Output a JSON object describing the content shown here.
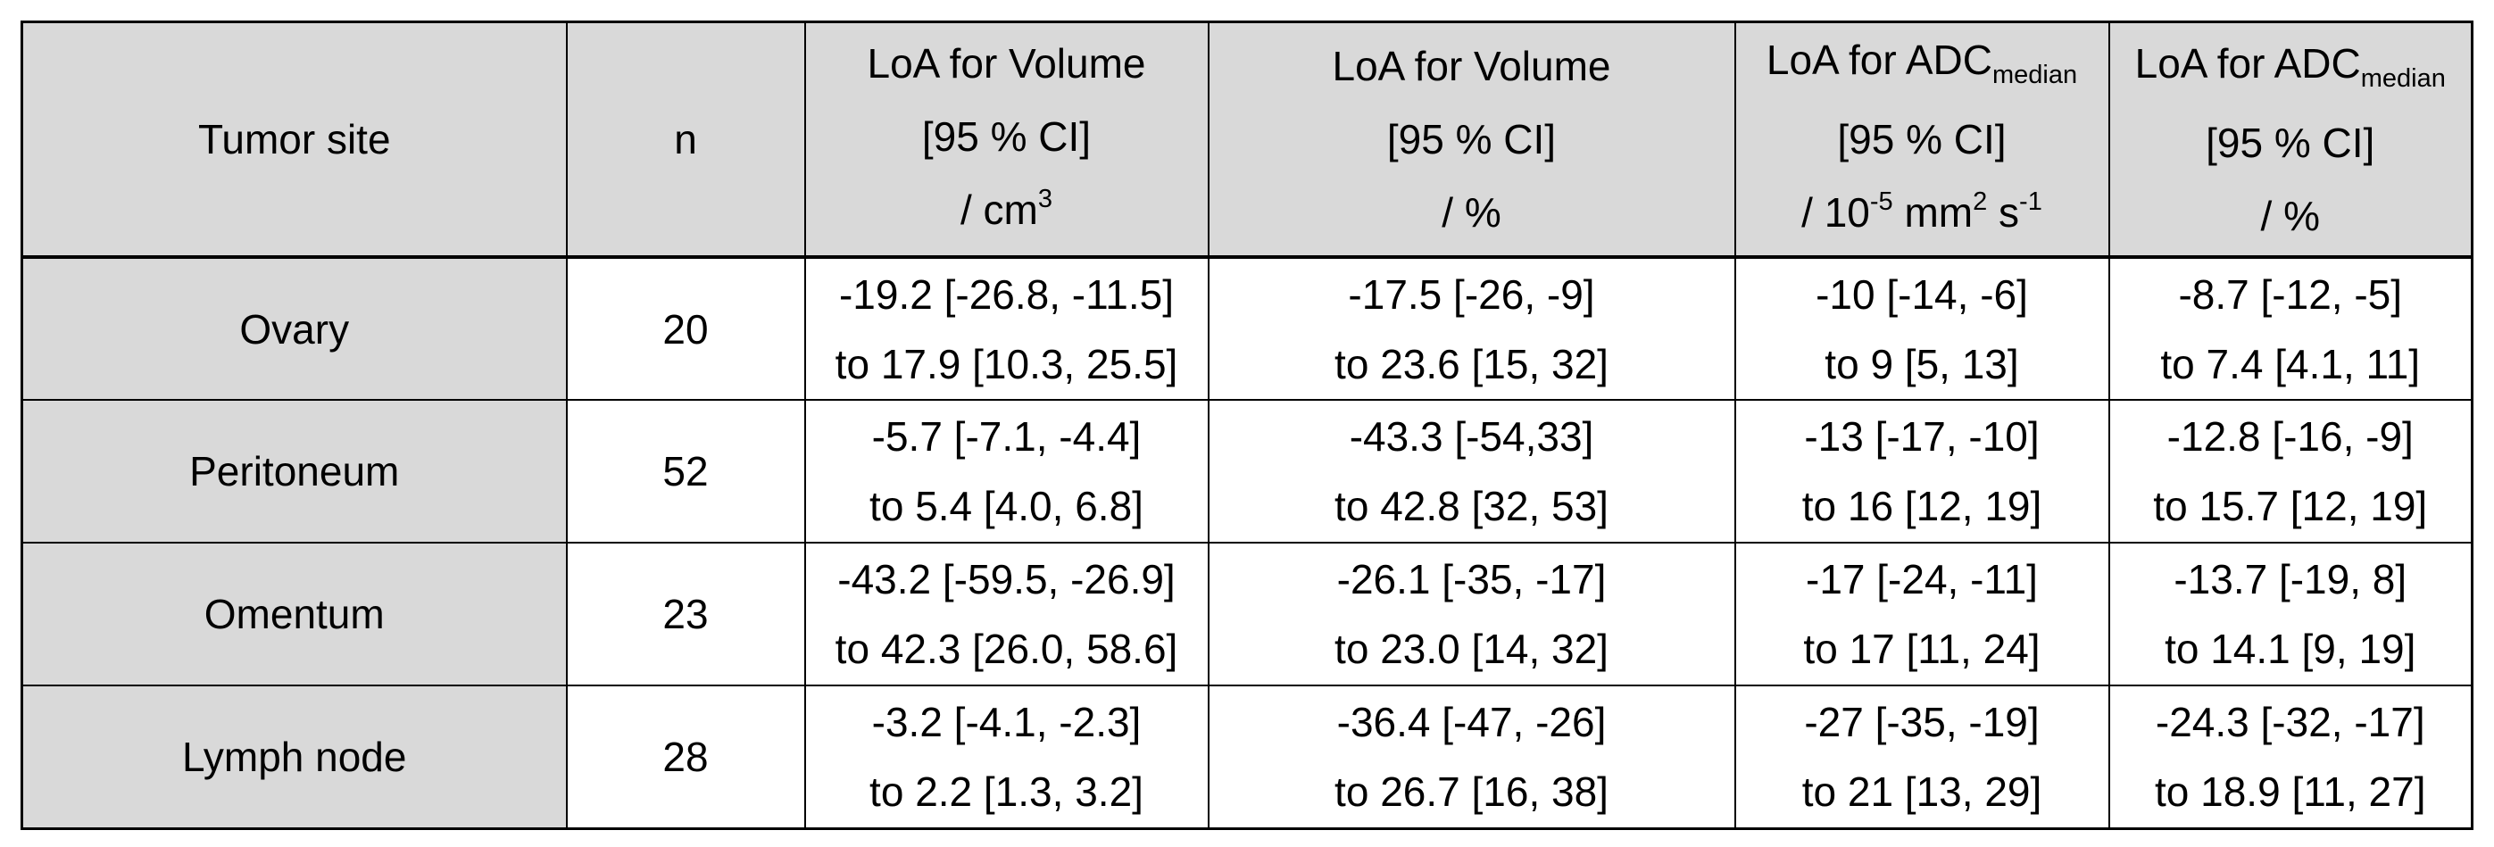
{
  "colors": {
    "header_bg": "#d9d9d9",
    "row_label_bg": "#d9d9d9",
    "border": "#000000",
    "text": "#000000",
    "page_bg": "#ffffff"
  },
  "table": {
    "columns": [
      {
        "id": "site",
        "lines": [
          [
            {
              "t": "Tumor site"
            }
          ]
        ]
      },
      {
        "id": "n",
        "lines": [
          [
            {
              "t": "n"
            }
          ]
        ]
      },
      {
        "id": "vol_cm3",
        "lines": [
          [
            {
              "t": "LoA for Volume"
            }
          ],
          [
            {
              "t": "[95 % CI]"
            }
          ],
          [
            {
              "t": "/ cm"
            },
            {
              "t": "3",
              "s": "sup"
            }
          ]
        ]
      },
      {
        "id": "vol_pct",
        "lines": [
          [
            {
              "t": "LoA for Volume"
            }
          ],
          [
            {
              "t": "[95 % CI]"
            }
          ],
          [
            {
              "t": "/ %"
            }
          ]
        ]
      },
      {
        "id": "adc",
        "lines": [
          [
            {
              "t": "LoA for ADC"
            },
            {
              "t": "median",
              "s": "sub"
            }
          ],
          [
            {
              "t": "[95 % CI]"
            }
          ],
          [
            {
              "t": "/ 10"
            },
            {
              "t": "-5",
              "s": "sup"
            },
            {
              "t": " mm"
            },
            {
              "t": "2",
              "s": "sup"
            },
            {
              "t": " s"
            },
            {
              "t": "-1",
              "s": "sup"
            }
          ]
        ]
      },
      {
        "id": "adc_pct",
        "lines": [
          [
            {
              "t": "LoA for ADC"
            },
            {
              "t": "median",
              "s": "sub"
            }
          ],
          [
            {
              "t": "[95 % CI]"
            }
          ],
          [
            {
              "t": "/ %"
            }
          ]
        ]
      }
    ],
    "rows": [
      {
        "site": "Ovary",
        "n": "20",
        "cells": [
          [
            "-19.2 [-26.8, -11.5]",
            "to 17.9 [10.3, 25.5]"
          ],
          [
            "-17.5 [-26, -9]",
            "to 23.6 [15, 32]"
          ],
          [
            "-10 [-14, -6]",
            "to 9 [5, 13]"
          ],
          [
            "-8.7 [-12, -5]",
            "to 7.4 [4.1, 11]"
          ]
        ]
      },
      {
        "site": "Peritoneum",
        "n": "52",
        "cells": [
          [
            "-5.7 [-7.1, -4.4]",
            "to 5.4 [4.0, 6.8]"
          ],
          [
            "-43.3 [-54,33]",
            "to 42.8 [32, 53]"
          ],
          [
            "-13 [-17, -10]",
            "to 16 [12, 19]"
          ],
          [
            "-12.8 [-16, -9]",
            "to 15.7 [12, 19]"
          ]
        ]
      },
      {
        "site": "Omentum",
        "n": "23",
        "cells": [
          [
            "-43.2 [-59.5, -26.9]",
            "to 42.3 [26.0, 58.6]"
          ],
          [
            "-26.1 [-35, -17]",
            "to 23.0 [14, 32]"
          ],
          [
            "-17 [-24, -11]",
            "to 17 [11, 24]"
          ],
          [
            "-13.7 [-19, 8]",
            "to 14.1 [9, 19]"
          ]
        ]
      },
      {
        "site": "Lymph node",
        "n": "28",
        "cells": [
          [
            "-3.2 [-4.1, -2.3]",
            "to 2.2 [1.3, 3.2]"
          ],
          [
            "-36.4 [-47, -26]",
            "to 26.7 [16, 38]"
          ],
          [
            "-27 [-35, -19]",
            "to 21 [13, 29]"
          ],
          [
            "-24.3 [-32, -17]",
            "to 18.9 [11, 27]"
          ]
        ]
      }
    ]
  }
}
